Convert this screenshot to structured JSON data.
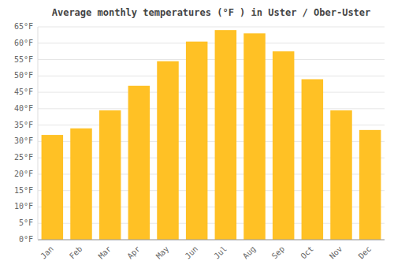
{
  "chart_data": {
    "type": "bar",
    "title": "Average monthly temperatures (°F ) in Uster / Ober-Uster",
    "categories": [
      "Jan",
      "Feb",
      "Mar",
      "Apr",
      "May",
      "Jun",
      "Jul",
      "Aug",
      "Sep",
      "Oct",
      "Nov",
      "Dec"
    ],
    "values": [
      32,
      34,
      39.5,
      47,
      54.5,
      60.5,
      64,
      63,
      57.5,
      49,
      39.5,
      33.5
    ],
    "color": "#FFC125",
    "ylim": [
      0,
      65
    ],
    "yticks": [
      {
        "value": 0,
        "label": "0°F"
      },
      {
        "value": 5,
        "label": "5°F"
      },
      {
        "value": 10,
        "label": "10°F"
      },
      {
        "value": 15,
        "label": "15°F"
      },
      {
        "value": 20,
        "label": "20°F"
      },
      {
        "value": 25,
        "label": "25°F"
      },
      {
        "value": 30,
        "label": "30°F"
      },
      {
        "value": 35,
        "label": "35°F"
      },
      {
        "value": 40,
        "label": "40°F"
      },
      {
        "value": 45,
        "label": "45°F"
      },
      {
        "value": 50,
        "label": "50°F"
      },
      {
        "value": 55,
        "label": "55°F"
      },
      {
        "value": 60,
        "label": "60°F"
      },
      {
        "value": 65,
        "label": "65°F"
      }
    ],
    "grid": true
  }
}
